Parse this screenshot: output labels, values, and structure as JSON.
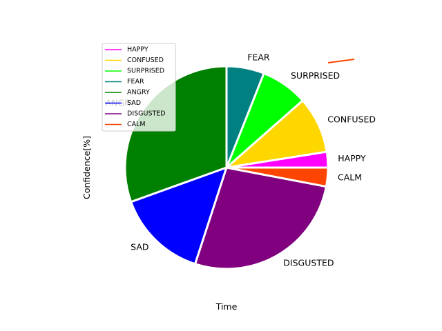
{
  "chart_data": {
    "type": "pie",
    "title": "",
    "xlabel": "Time",
    "ylabel": "Confidence[%]",
    "counterclock": true,
    "start_angle_deg": 0,
    "slices": [
      {
        "label": "HAPPY",
        "value": 2.5,
        "color": "#ff00ff"
      },
      {
        "label": "CONFUSED",
        "value": 9.0,
        "color": "#ffd700"
      },
      {
        "label": "SURPRISED",
        "value": 7.5,
        "color": "#00ff00"
      },
      {
        "label": "FEAR",
        "value": 6.0,
        "color": "#008080"
      },
      {
        "label": "ANGRY",
        "value": 30.5,
        "color": "#008000"
      },
      {
        "label": "SAD",
        "value": 14.5,
        "color": "#0000ff"
      },
      {
        "label": "DISGUSTED",
        "value": 27.0,
        "color": "#800080"
      },
      {
        "label": "CALM",
        "value": 3.0,
        "color": "#ff4500"
      }
    ],
    "legend": {
      "position": "upper-left",
      "entries": [
        "HAPPY",
        "CONFUSED",
        "SURPRISED",
        "FEAR",
        "ANGRY",
        "SAD",
        "DISGUSTED",
        "CALM"
      ]
    },
    "grid": false
  }
}
